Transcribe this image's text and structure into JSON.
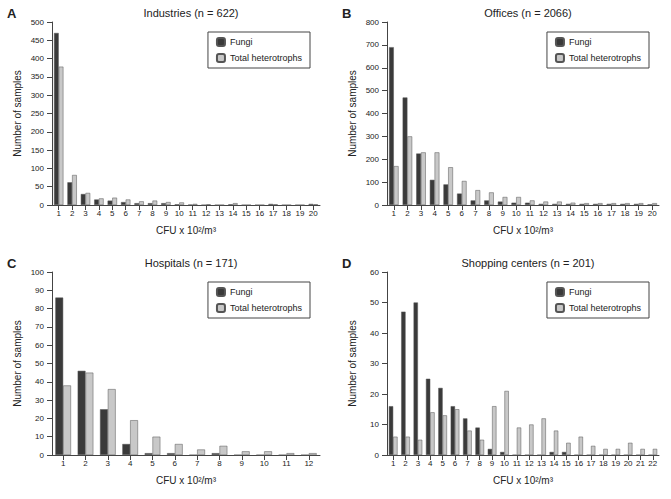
{
  "chart_data": [
    {
      "type": "bar",
      "title": "Industries (n = 622)",
      "annotations": [
        {
          "text": "A"
        }
      ],
      "x_label": "CFU x 10²/m³",
      "y_label": "Number of samples",
      "categories": [
        "1",
        "2",
        "3",
        "4",
        "5",
        "6",
        "7",
        "8",
        "9",
        "10",
        "11",
        "12",
        "13",
        "14",
        "15",
        "16",
        "17",
        "18",
        "19",
        "20"
      ],
      "series": [
        {
          "name": "Fungi",
          "color": "#3a3a3a",
          "values": [
            470,
            62,
            30,
            15,
            12,
            8,
            5,
            5,
            5,
            2,
            1,
            0,
            0,
            2,
            0,
            0,
            3,
            0,
            0,
            3
          ]
        },
        {
          "name": "Total heterotrophs",
          "color": "#c8c8c8",
          "values": [
            378,
            82,
            33,
            18,
            20,
            15,
            10,
            12,
            8,
            7,
            3,
            2,
            0,
            5,
            0,
            0,
            2,
            0,
            0,
            2
          ]
        }
      ],
      "ylim": [
        0,
        500
      ],
      "yticks": [
        0,
        50,
        100,
        150,
        200,
        250,
        300,
        350,
        400,
        450,
        500
      ],
      "grid": false,
      "legend": "upper right"
    },
    {
      "type": "bar",
      "title": "Offices (n = 2066)",
      "annotations": [
        {
          "text": "B"
        }
      ],
      "x_label": "CFU x 10²/m³",
      "y_label": "Number of samples",
      "categories": [
        "1",
        "2",
        "3",
        "4",
        "5",
        "6",
        "7",
        "8",
        "9",
        "10",
        "11",
        "12",
        "13",
        "14",
        "15",
        "16",
        "17",
        "18",
        "19",
        "20"
      ],
      "series": [
        {
          "name": "Fungi",
          "color": "#3a3a3a",
          "values": [
            690,
            470,
            225,
            110,
            90,
            50,
            20,
            20,
            15,
            10,
            10,
            5,
            5,
            5,
            5,
            5,
            5,
            5,
            5,
            3
          ]
        },
        {
          "name": "Total heterotrophs",
          "color": "#c8c8c8",
          "values": [
            170,
            300,
            230,
            230,
            165,
            105,
            65,
            55,
            35,
            35,
            20,
            15,
            15,
            10,
            8,
            8,
            8,
            8,
            8,
            8
          ]
        }
      ],
      "ylim": [
        0,
        800
      ],
      "yticks": [
        0,
        100,
        200,
        300,
        400,
        500,
        600,
        700,
        800
      ],
      "grid": false,
      "legend": "upper right"
    },
    {
      "type": "bar",
      "title": "Hospitals (n = 171)",
      "annotations": [
        {
          "text": "C"
        }
      ],
      "x_label": "CFU x 10²/m³",
      "y_label": "Number of samples",
      "categories": [
        "1",
        "2",
        "3",
        "4",
        "5",
        "6",
        "7",
        "8",
        "9",
        "10",
        "11",
        "12"
      ],
      "series": [
        {
          "name": "Fungi",
          "color": "#3a3a3a",
          "values": [
            86,
            46,
            25,
            6,
            1,
            1,
            0,
            1,
            0,
            0,
            0,
            0
          ]
        },
        {
          "name": "Total heterotrophs",
          "color": "#c8c8c8",
          "values": [
            38,
            45,
            36,
            19,
            10,
            6,
            3,
            5,
            2,
            2,
            1,
            1
          ]
        }
      ],
      "ylim": [
        0,
        100
      ],
      "yticks": [
        0,
        10,
        20,
        30,
        40,
        50,
        60,
        70,
        80,
        90,
        100
      ],
      "grid": false,
      "legend": "upper right"
    },
    {
      "type": "bar",
      "title": "Shopping centers (n = 201)",
      "annotations": [
        {
          "text": "D"
        }
      ],
      "x_label": "CFU x 10²/m³",
      "y_label": "Number of samples",
      "categories": [
        "1",
        "2",
        "3",
        "4",
        "5",
        "6",
        "7",
        "8",
        "9",
        "10",
        "11",
        "12",
        "13",
        "14",
        "15",
        "16",
        "17",
        "18",
        "19",
        "20",
        "21",
        "22"
      ],
      "series": [
        {
          "name": "Fungi",
          "color": "#3a3a3a",
          "values": [
            16,
            47,
            50,
            25,
            22,
            16,
            12,
            9,
            2,
            1,
            0,
            0,
            0,
            1,
            1,
            0,
            0,
            0,
            0,
            0,
            0,
            0
          ]
        },
        {
          "name": "Total heterotrophs",
          "color": "#c8c8c8",
          "values": [
            6,
            6,
            5,
            14,
            13,
            15,
            8,
            5,
            16,
            21,
            9,
            10,
            12,
            8,
            4,
            6,
            3,
            2,
            2,
            4,
            2,
            2
          ]
        }
      ],
      "ylim": [
        0,
        60
      ],
      "yticks": [
        0,
        10,
        20,
        30,
        40,
        50,
        60
      ],
      "grid": false,
      "legend": "upper right"
    }
  ]
}
